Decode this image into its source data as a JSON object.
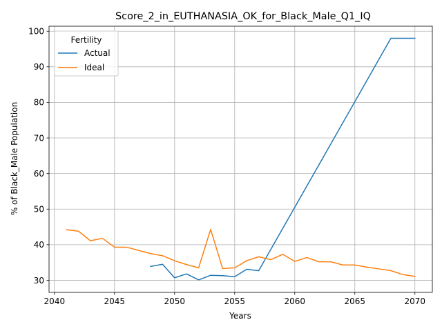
{
  "chart_data": {
    "type": "line",
    "title": "Score_2_in_EUTHANASIA_OK_for_Black_Male_Q1_IQ",
    "xlabel": "Years",
    "ylabel": "% of Black_Male Population",
    "xlim": [
      2039.55,
      2071.45
    ],
    "ylim": [
      26.6,
      101.4
    ],
    "xticks": [
      2040,
      2045,
      2050,
      2055,
      2060,
      2065,
      2070
    ],
    "yticks": [
      30,
      40,
      50,
      60,
      70,
      80,
      90,
      100
    ],
    "grid": true,
    "legend": {
      "title": "Fertility",
      "position": "upper left"
    },
    "series": [
      {
        "name": "Actual",
        "color": "#1f77b4",
        "x": [
          2048,
          2049,
          2050,
          2051,
          2052,
          2053,
          2054,
          2055,
          2056,
          2057,
          2068,
          2069,
          2070
        ],
        "y": [
          33.9,
          34.5,
          30.7,
          31.8,
          30.1,
          31.4,
          31.3,
          31.0,
          33.1,
          32.7,
          98.0,
          98.0,
          98.0
        ]
      },
      {
        "name": "Ideal",
        "color": "#ff7f0e",
        "x": [
          2041,
          2042,
          2043,
          2044,
          2045,
          2046,
          2047,
          2048,
          2049,
          2050,
          2051,
          2052,
          2053,
          2054,
          2055,
          2056,
          2057,
          2058,
          2059,
          2060,
          2061,
          2062,
          2063,
          2064,
          2065,
          2066,
          2067,
          2068,
          2069,
          2070
        ],
        "y": [
          44.2,
          43.8,
          41.1,
          41.8,
          39.3,
          39.3,
          38.4,
          37.5,
          36.9,
          35.5,
          34.4,
          33.5,
          44.3,
          33.3,
          33.5,
          35.5,
          36.6,
          35.8,
          37.3,
          35.3,
          36.4,
          35.2,
          35.2,
          34.3,
          34.3,
          33.7,
          33.2,
          32.7,
          31.6,
          31.1
        ]
      }
    ]
  }
}
